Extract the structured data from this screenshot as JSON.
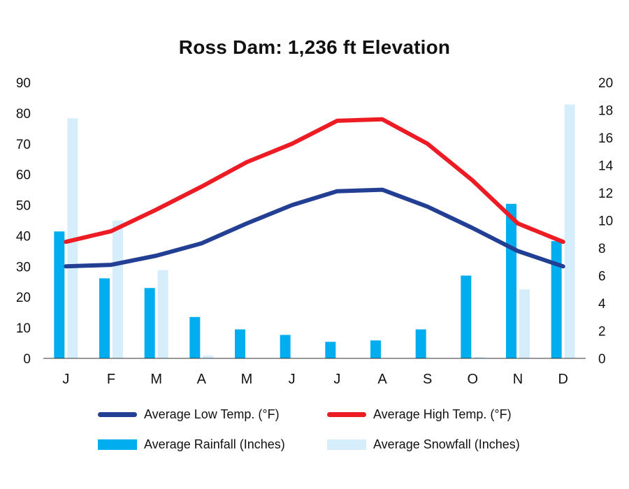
{
  "chart_data": {
    "type": "bar",
    "title": "Ross Dam: 1,236 ft Elevation",
    "categories": [
      "J",
      "F",
      "M",
      "A",
      "M",
      "J",
      "J",
      "A",
      "S",
      "O",
      "N",
      "D"
    ],
    "y_left": {
      "min": 0,
      "max": 90,
      "ticks": [
        "0",
        "10",
        "20",
        "30",
        "40",
        "50",
        "60",
        "70",
        "80",
        "90"
      ]
    },
    "y_right": {
      "min": 0,
      "max": 20,
      "ticks": [
        "0",
        "2",
        "4",
        "6",
        "8",
        "10",
        "12",
        "14",
        "16",
        "18",
        "20"
      ]
    },
    "series": [
      {
        "name": "Average Rainfall (Inches)",
        "type": "bar",
        "axis": "right",
        "color": "#00aeef",
        "values": [
          9.2,
          5.8,
          5.1,
          3.0,
          2.1,
          1.7,
          1.2,
          1.3,
          2.1,
          6.0,
          11.2,
          8.5
        ]
      },
      {
        "name": "Average Snowfall (Inches)",
        "type": "bar",
        "axis": "right",
        "color": "#d6eefb",
        "values": [
          17.4,
          10.0,
          6.4,
          0.2,
          0,
          0,
          0,
          0,
          0,
          0.1,
          5.0,
          18.4
        ]
      },
      {
        "name": "Average Low Temp. (°F)",
        "type": "line",
        "axis": "left",
        "color": "#233f94",
        "values": [
          30,
          30.5,
          33.5,
          37.5,
          44,
          50,
          54.5,
          55,
          49.5,
          42.5,
          35,
          30
        ]
      },
      {
        "name": "Average High Temp. (°F)",
        "type": "line",
        "axis": "left",
        "color": "#ed1c24",
        "values": [
          38,
          41.5,
          48.5,
          56,
          64,
          70,
          77.5,
          78,
          70,
          58,
          44,
          38
        ]
      }
    ]
  },
  "legend": [
    {
      "label": "Average Low Temp. (°F)",
      "kind": "line",
      "color": "#233f94"
    },
    {
      "label": "Average High Temp. (°F)",
      "kind": "line",
      "color": "#ed1c24"
    },
    {
      "label": "Average Rainfall (Inches)",
      "kind": "bar",
      "color": "#00aeef"
    },
    {
      "label": "Average Snowfall (Inches)",
      "kind": "bar",
      "color": "#d6eefb"
    }
  ]
}
